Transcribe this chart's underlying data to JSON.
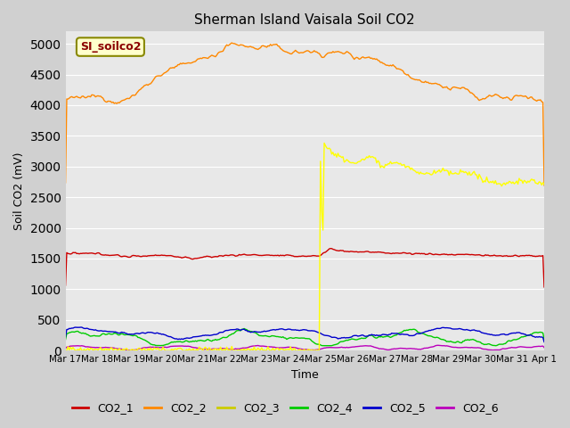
{
  "title": "Sherman Island Vaisala Soil CO2",
  "ylabel": "Soil CO2 (mV)",
  "xlabel": "Time",
  "annotation": "SI_soilco2",
  "background_color": "#d0d0d0",
  "plot_bg_color": "#e8e8e8",
  "ylim": [
    0,
    5200
  ],
  "yticks": [
    0,
    500,
    1000,
    1500,
    2000,
    2500,
    3000,
    3500,
    4000,
    4500,
    5000
  ],
  "colors": {
    "CO2_1": "#cc0000",
    "CO2_2": "#ff8800",
    "CO2_3": "#ffff00",
    "CO2_4": "#00cc00",
    "CO2_5": "#0000cc",
    "CO2_6": "#bb00bb"
  },
  "legend_colors": {
    "CO2_1": "#cc0000",
    "CO2_2": "#ff8800",
    "CO2_3": "#cccc00",
    "CO2_4": "#00cc00",
    "CO2_5": "#0000cc",
    "CO2_6": "#bb00bb"
  },
  "xtick_labels": [
    "Mar 17",
    "Mar 18",
    "Mar 19",
    "Mar 20",
    "Mar 21",
    "Mar 22",
    "Mar 23",
    "Mar 24",
    "Mar 25",
    "Mar 26",
    "Mar 27",
    "Mar 28",
    "Mar 29",
    "Mar 30",
    "Mar 31",
    "Apr 1"
  ],
  "grid_color": "#ffffff",
  "linewidth": 1.0
}
